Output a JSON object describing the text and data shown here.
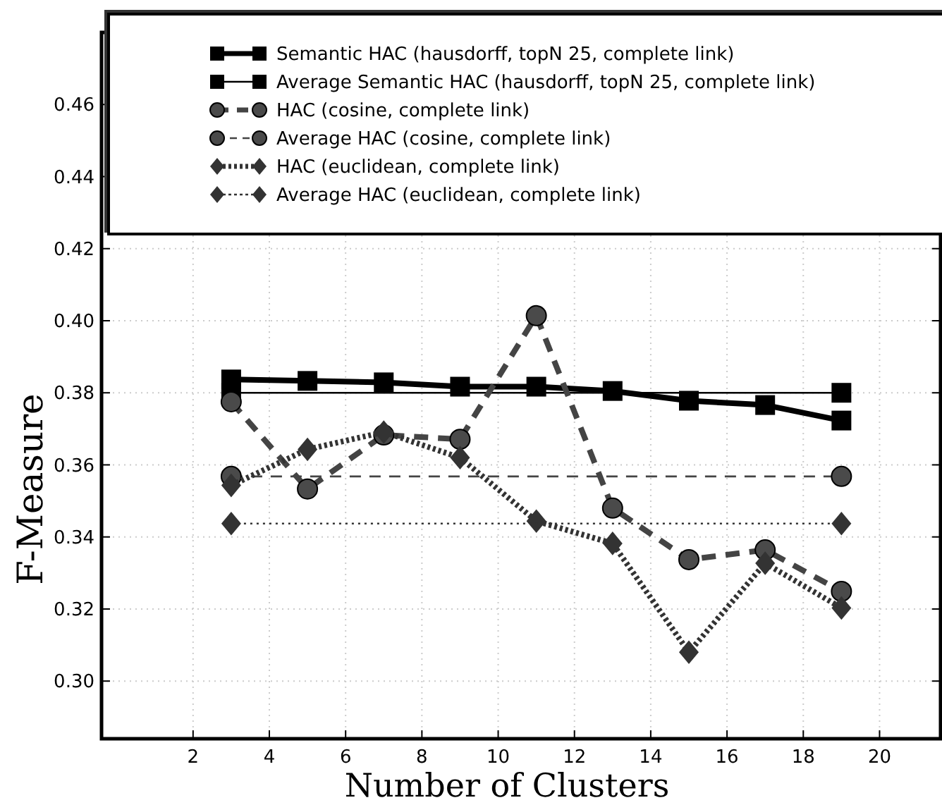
{
  "chart_data": {
    "type": "line",
    "xlabel": "Number of Clusters",
    "ylabel": "F-Measure",
    "xlim": [
      -0.4,
      21.6
    ],
    "xticks": [
      2,
      4,
      6,
      8,
      10,
      12,
      14,
      16,
      18,
      20
    ],
    "ylim": [
      0.284,
      0.48
    ],
    "yticks": [
      {
        "value": 0.3,
        "label": "0.30"
      },
      {
        "value": 0.32,
        "label": "0.32"
      },
      {
        "value": 0.34,
        "label": "0.34"
      },
      {
        "value": 0.36,
        "label": "0.36"
      },
      {
        "value": 0.38,
        "label": "0.38"
      },
      {
        "value": 0.4,
        "label": "0.40"
      },
      {
        "value": 0.42,
        "label": "0.42"
      },
      {
        "value": 0.44,
        "label": "0.44"
      },
      {
        "value": 0.46,
        "label": "0.46"
      }
    ],
    "grid": true,
    "legend": "top",
    "series": [
      {
        "name": "Semantic HAC (hausdorff, topN 25, complete link)",
        "color": "#000000",
        "marker": "square",
        "line_style": "solid",
        "x": [
          3,
          5,
          7,
          9,
          11,
          13,
          15,
          17,
          19
        ],
        "values": [
          0.3837,
          0.3833,
          0.3829,
          0.3817,
          0.3817,
          0.3805,
          0.3778,
          0.3766,
          0.3723
        ]
      },
      {
        "name": "Average Semantic HAC (hausdorff, topN 25, complete link)",
        "color": "#000000",
        "marker": "square",
        "line_style": "solid",
        "x": [
          3,
          19
        ],
        "values": [
          0.38,
          0.38
        ]
      },
      {
        "name": "HAC (cosine, complete link)",
        "color": "#444444",
        "marker": "circle",
        "line_style": "dashed",
        "x": [
          3,
          5,
          7,
          9,
          11,
          13,
          15,
          17,
          19
        ],
        "values": [
          0.3775,
          0.3533,
          0.3683,
          0.3671,
          0.4014,
          0.348,
          0.3337,
          0.3364,
          0.3249
        ]
      },
      {
        "name": "Average HAC (cosine, complete link)",
        "color": "#444444",
        "marker": "circle",
        "line_style": "dashed",
        "x": [
          3,
          19
        ],
        "values": [
          0.3568,
          0.3568
        ]
      },
      {
        "name": "HAC (euclidean, complete link)",
        "color": "#333333",
        "marker": "diamond",
        "line_style": "dotted",
        "x": [
          3,
          5,
          7,
          9,
          11,
          13,
          15,
          17,
          19
        ],
        "values": [
          0.3543,
          0.3643,
          0.3691,
          0.362,
          0.3444,
          0.3382,
          0.308,
          0.3327,
          0.3203
        ]
      },
      {
        "name": "Average HAC (euclidean, complete link)",
        "color": "#333333",
        "marker": "diamond",
        "line_style": "dotted",
        "x": [
          3,
          19
        ],
        "values": [
          0.3437,
          0.3437
        ]
      }
    ]
  }
}
